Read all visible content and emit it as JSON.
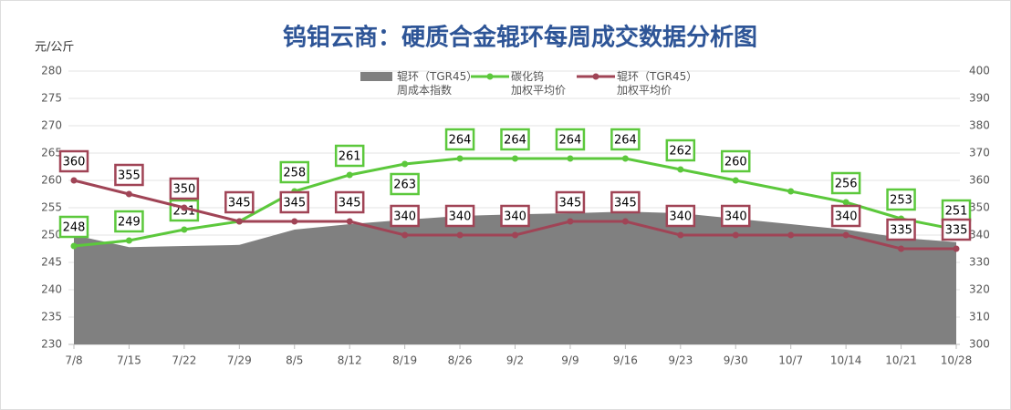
{
  "chart_data": {
    "type": "line",
    "title": "钨钼云商：硬质合金辊环每周成交数据分析图",
    "y_label": "元/公斤",
    "categories": [
      "7/8",
      "7/15",
      "7/22",
      "7/29",
      "8/5",
      "8/12",
      "8/19",
      "8/26",
      "9/2",
      "9/9",
      "9/16",
      "9/23",
      "9/30",
      "10/7",
      "10/14",
      "10/21",
      "10/28"
    ],
    "ylim": [
      230,
      280
    ],
    "yticks": [
      230,
      235,
      240,
      245,
      250,
      255,
      260,
      265,
      270,
      275,
      280
    ],
    "y2lim": [
      300,
      400
    ],
    "y2ticks": [
      300,
      310,
      320,
      330,
      340,
      350,
      360,
      370,
      380,
      390,
      400
    ],
    "grid": true,
    "series": [
      {
        "name": "辊环（TGR45）\n周成本指数",
        "type": "area",
        "color": "#808080",
        "values": [
          250,
          247.8,
          248,
          248.2,
          251,
          252,
          252.8,
          253.5,
          253.8,
          254,
          254.3,
          254,
          253,
          252,
          251,
          249.5,
          248.7
        ]
      },
      {
        "name": "碳化钨\n加权平均价",
        "type": "line",
        "color": "#5cc83c",
        "values": [
          248,
          249,
          251,
          252.5,
          258,
          261,
          263,
          264,
          264,
          264,
          264,
          262,
          260,
          258,
          256,
          253,
          251
        ],
        "value_labels": [
          "248",
          "249",
          "251",
          null,
          "258",
          "261",
          "263",
          "264",
          "264",
          "264",
          "264",
          "262",
          "260",
          null,
          "256",
          "253",
          "251"
        ]
      },
      {
        "name": "辊环（TGR45）\n加权平均价",
        "type": "line",
        "axis": "y2",
        "color": "#a04456",
        "values": [
          360,
          355,
          350,
          345,
          345,
          345,
          340,
          340,
          340,
          345,
          345,
          340,
          340,
          340,
          340,
          335,
          335
        ],
        "value_labels": [
          "360",
          "355",
          "350",
          "345",
          "345",
          "345",
          "340",
          "340",
          "340",
          "345",
          "345",
          "340",
          "340",
          null,
          "340",
          "335",
          "335"
        ]
      }
    ]
  }
}
